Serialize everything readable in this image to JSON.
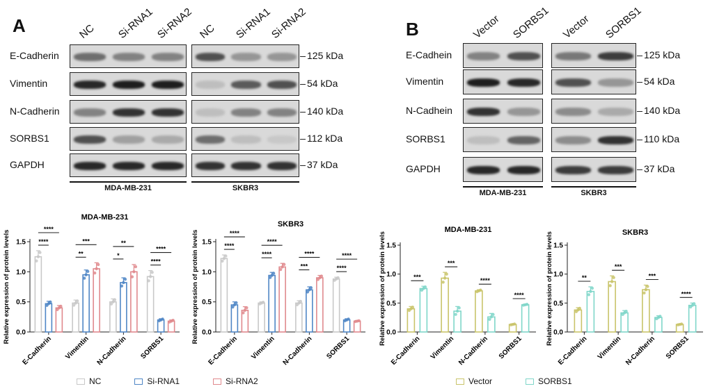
{
  "panel_a": {
    "letter": "A",
    "lanes_left": [
      "NC",
      "Si-RNA1",
      "Si-RNA2"
    ],
    "lanes_right": [
      "NC",
      "Si-RNA1",
      "Si-RNA2"
    ],
    "rows": [
      "E-Cadherin",
      "Vimentin",
      "N-Cadherin",
      "SORBS1",
      "GAPDH"
    ],
    "kda": [
      "125 kDa",
      "54 kDa",
      "140 kDa",
      "112 kDa",
      "37 kDa"
    ],
    "cell_left": "MDA-MB-231",
    "cell_right": "SKBR3",
    "intensity_left": [
      [
        0.55,
        0.45,
        0.45
      ],
      [
        0.9,
        0.95,
        0.95
      ],
      [
        0.45,
        0.85,
        0.85
      ],
      [
        0.7,
        0.3,
        0.25
      ],
      [
        0.9,
        0.9,
        0.9
      ]
    ],
    "intensity_right": [
      [
        0.7,
        0.35,
        0.35
      ],
      [
        0.15,
        0.65,
        0.7
      ],
      [
        0.15,
        0.45,
        0.45
      ],
      [
        0.55,
        0.15,
        0.1
      ],
      [
        0.85,
        0.85,
        0.85
      ]
    ]
  },
  "panel_b": {
    "letter": "B",
    "lanes_left": [
      "Vector",
      "SORBS1"
    ],
    "lanes_right": [
      "Vector",
      "SORBS1"
    ],
    "rows": [
      "E-Cadhein",
      "Vimentin",
      "N-Cadhein",
      "SORBS1",
      "GAPDH"
    ],
    "kda": [
      "125 kDa",
      "54 kDa",
      "140 kDa",
      "110 kDa",
      "37 kDa"
    ],
    "cell_left": "MDA-MB-231",
    "cell_right": "SKBR3",
    "intensity_left": [
      [
        0.45,
        0.7
      ],
      [
        0.95,
        0.9
      ],
      [
        0.85,
        0.35
      ],
      [
        0.15,
        0.6
      ],
      [
        0.9,
        0.9
      ]
    ],
    "intensity_right": [
      [
        0.5,
        0.8
      ],
      [
        0.7,
        0.35
      ],
      [
        0.4,
        0.25
      ],
      [
        0.4,
        0.85
      ],
      [
        0.8,
        0.8
      ]
    ]
  },
  "colors": {
    "nc": "#c8c8c8",
    "si1": "#4f86c6",
    "si2": "#e0898d",
    "vector": "#c9c46a",
    "sorbs1": "#7fd6c9"
  },
  "chart_data": [
    {
      "type": "bar",
      "title": "MDA-MB-231",
      "ylabel": "Relative expression of protein levels",
      "categories": [
        "E-Cadherin",
        "Vimentin",
        "N-Cadherin",
        "SORBS1"
      ],
      "ylim": [
        0,
        1.5
      ],
      "yticks": [
        "0.0",
        "0.5",
        "1.0",
        "1.5"
      ],
      "series": [
        {
          "name": "NC",
          "values": [
            1.25,
            0.48,
            0.5,
            0.92
          ],
          "errors": [
            0.1,
            0.05,
            0.05,
            0.1
          ]
        },
        {
          "name": "Si-RNA1",
          "values": [
            0.47,
            0.95,
            0.82,
            0.2
          ],
          "errors": [
            0.04,
            0.08,
            0.08,
            0.02
          ]
        },
        {
          "name": "Si-RNA2",
          "values": [
            0.4,
            1.05,
            1.0,
            0.18
          ],
          "errors": [
            0.04,
            0.1,
            0.12,
            0.02
          ]
        }
      ],
      "sig": [
        {
          "cat": 0,
          "from": 0,
          "to": 2,
          "label": "****",
          "level": 1
        },
        {
          "cat": 0,
          "from": 0,
          "to": 1,
          "label": "****",
          "level": 0
        },
        {
          "cat": 1,
          "from": 0,
          "to": 2,
          "label": "***",
          "level": 1
        },
        {
          "cat": 1,
          "from": 0,
          "to": 1,
          "label": "**",
          "level": 0
        },
        {
          "cat": 2,
          "from": 0,
          "to": 2,
          "label": "**",
          "level": 1
        },
        {
          "cat": 2,
          "from": 0,
          "to": 1,
          "label": "*",
          "level": 0
        },
        {
          "cat": 3,
          "from": 0,
          "to": 2,
          "label": "****",
          "level": 1
        },
        {
          "cat": 3,
          "from": 0,
          "to": 1,
          "label": "****",
          "level": 0
        }
      ]
    },
    {
      "type": "bar",
      "title": "SKBR3",
      "ylabel": "Relative expression of protein levels",
      "categories": [
        "E-Cadherin",
        "Vimentin",
        "N-Cadherin",
        "SORBS1"
      ],
      "ylim": [
        0,
        1.5
      ],
      "yticks": [
        "0.0",
        "0.5",
        "1.0",
        "1.5"
      ],
      "series": [
        {
          "name": "NC",
          "values": [
            1.22,
            0.48,
            0.48,
            0.88
          ],
          "errors": [
            0.06,
            0.02,
            0.04,
            0.03
          ]
        },
        {
          "name": "Si-RNA1",
          "values": [
            0.45,
            0.94,
            0.7,
            0.2
          ],
          "errors": [
            0.05,
            0.05,
            0.05,
            0.02
          ]
        },
        {
          "name": "Si-RNA2",
          "values": [
            0.36,
            1.08,
            0.9,
            0.18
          ],
          "errors": [
            0.06,
            0.06,
            0.04,
            0.01
          ]
        }
      ],
      "sig": [
        {
          "cat": 0,
          "from": 0,
          "to": 2,
          "label": "****",
          "level": 1
        },
        {
          "cat": 0,
          "from": 0,
          "to": 1,
          "label": "****",
          "level": 0
        },
        {
          "cat": 1,
          "from": 0,
          "to": 2,
          "label": "****",
          "level": 1
        },
        {
          "cat": 1,
          "from": 0,
          "to": 1,
          "label": "****",
          "level": 0
        },
        {
          "cat": 2,
          "from": 0,
          "to": 2,
          "label": "****",
          "level": 1
        },
        {
          "cat": 2,
          "from": 0,
          "to": 1,
          "label": "***",
          "level": 0
        },
        {
          "cat": 3,
          "from": 0,
          "to": 2,
          "label": "****",
          "level": 1
        },
        {
          "cat": 3,
          "from": 0,
          "to": 1,
          "label": "****",
          "level": 0
        }
      ]
    },
    {
      "type": "bar",
      "title": "MDA-MB-231",
      "ylabel": "Relative expression of protein levels",
      "categories": [
        "E-Cadherin",
        "Vimentin",
        "N-Cadherin",
        "SORBS1"
      ],
      "ylim": [
        0,
        1.5
      ],
      "yticks": [
        "0.0",
        "0.5",
        "1.0",
        "1.5"
      ],
      "series": [
        {
          "name": "Vector",
          "values": [
            0.4,
            0.93,
            0.71,
            0.13
          ],
          "errors": [
            0.04,
            0.1,
            0.02,
            0.01
          ]
        },
        {
          "name": "SORBS1",
          "values": [
            0.75,
            0.36,
            0.26,
            0.47
          ],
          "errors": [
            0.04,
            0.08,
            0.06,
            0.01
          ]
        }
      ],
      "sig": [
        {
          "cat": 0,
          "from": 0,
          "to": 1,
          "label": "***",
          "level": 0
        },
        {
          "cat": 1,
          "from": 0,
          "to": 1,
          "label": "***",
          "level": 0
        },
        {
          "cat": 2,
          "from": 0,
          "to": 1,
          "label": "****",
          "level": 0
        },
        {
          "cat": 3,
          "from": 0,
          "to": 1,
          "label": "****",
          "level": 0
        }
      ]
    },
    {
      "type": "bar",
      "title": "SKBR3",
      "ylabel": "Relative expression of protein levels",
      "categories": [
        "E-Cadherin",
        "Vimentin",
        "N-Cadherin",
        "SORBS1"
      ],
      "ylim": [
        0,
        1.5
      ],
      "yticks": [
        "0.0",
        "0.5",
        "1.0",
        "1.5"
      ],
      "series": [
        {
          "name": "Vector",
          "values": [
            0.38,
            0.87,
            0.73,
            0.13
          ],
          "errors": [
            0.04,
            0.1,
            0.08,
            0.01
          ]
        },
        {
          "name": "SORBS1",
          "values": [
            0.7,
            0.33,
            0.25,
            0.46
          ],
          "errors": [
            0.08,
            0.04,
            0.03,
            0.04
          ]
        }
      ],
      "sig": [
        {
          "cat": 0,
          "from": 0,
          "to": 1,
          "label": "**",
          "level": 0
        },
        {
          "cat": 1,
          "from": 0,
          "to": 1,
          "label": "***",
          "level": 0
        },
        {
          "cat": 2,
          "from": 0,
          "to": 1,
          "label": "***",
          "level": 0
        },
        {
          "cat": 3,
          "from": 0,
          "to": 1,
          "label": "****",
          "level": 0
        }
      ]
    }
  ],
  "legend_a": [
    {
      "label": "NC",
      "color": "#c8c8c8"
    },
    {
      "label": "Si-RNA1",
      "color": "#4f86c6"
    },
    {
      "label": "Si-RNA2",
      "color": "#e0898d"
    }
  ],
  "legend_b": [
    {
      "label": "Vector",
      "color": "#c9c46a"
    },
    {
      "label": "SORBS1",
      "color": "#7fd6c9"
    }
  ]
}
